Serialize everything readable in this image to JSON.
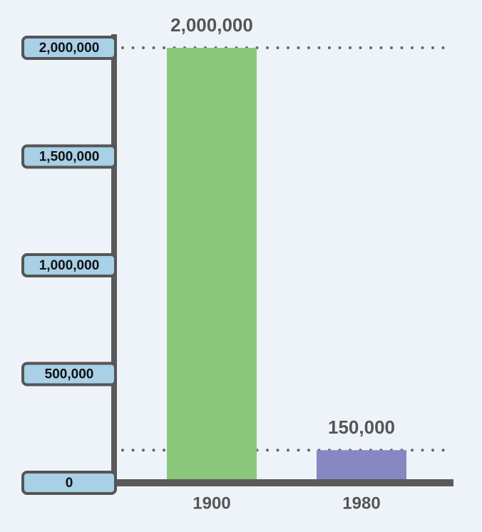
{
  "chart_data": {
    "type": "bar",
    "categories": [
      "1900",
      "1980"
    ],
    "values": [
      2000000,
      150000
    ],
    "value_labels": [
      "2,000,000",
      "150,000"
    ],
    "colors": [
      "#8bc77a",
      "#8787c2"
    ],
    "ylim": [
      0,
      2000000
    ],
    "yticks": [
      0,
      {
        "value": 500000,
        "label": "500,000"
      },
      {
        "value": 1000000,
        "label": "1,000,000"
      },
      {
        "value": 1500000,
        "label": "1,500,000"
      },
      {
        "value": 2000000,
        "label": "2,000,000"
      }
    ],
    "reference_lines": true
  }
}
